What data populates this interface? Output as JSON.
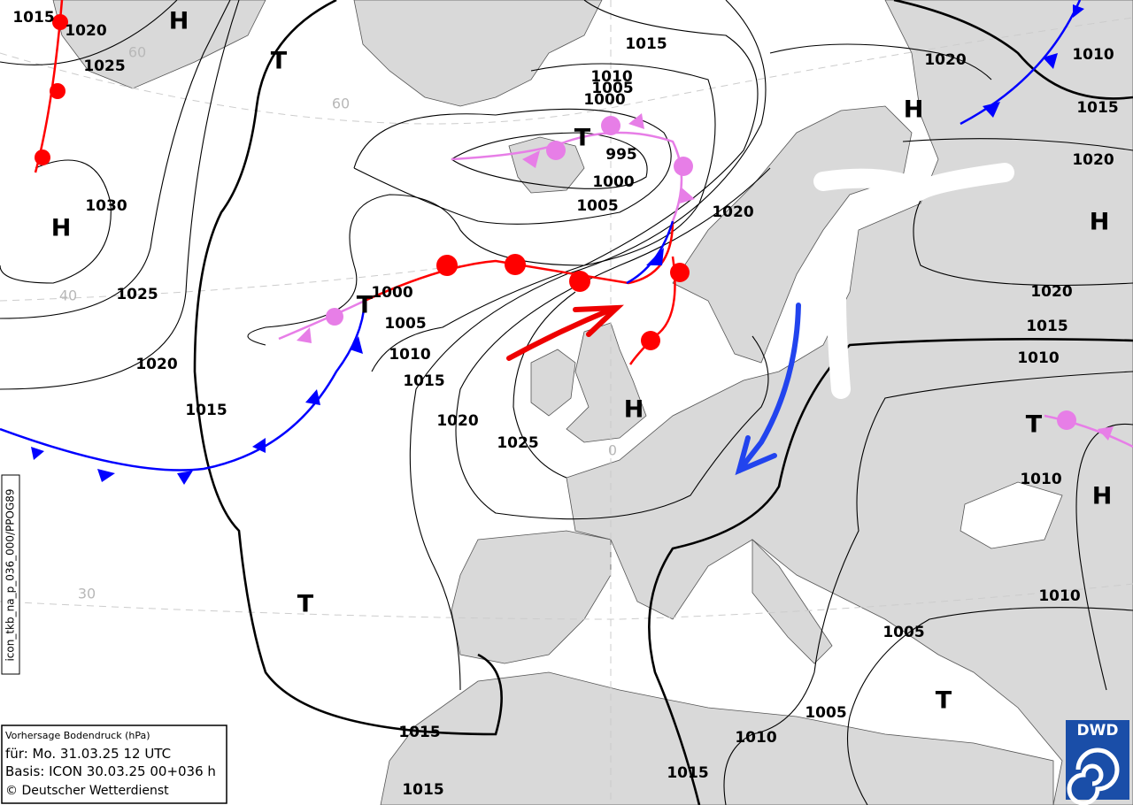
{
  "pressure_labels": [
    1015,
    1020,
    1025,
    1030,
    1025,
    1020,
    1015,
    1000,
    1005,
    1010,
    1015,
    1020,
    1025,
    1015,
    1010,
    1005,
    1000,
    995,
    1000,
    1005,
    1020,
    1020,
    1010,
    1015,
    1020,
    1020,
    1015,
    1010,
    1010,
    1010,
    1005,
    1005,
    1010,
    1015,
    1015,
    1015
  ],
  "system_labels": [
    "H",
    "T",
    "H",
    "T",
    "T",
    "H",
    "H",
    "H",
    "T",
    "H",
    "T",
    "T"
  ],
  "grid_labels": [
    60,
    60,
    40,
    30,
    0
  ],
  "legend": {
    "title": "Vorhersage Bodendruck (hPa)",
    "valid": "für:  Mo. 31.03.25  12 UTC",
    "basis": "Basis: ICON  30.03.25 00+036 h",
    "copyright": "© Deutscher Wetterdienst"
  },
  "product_id": "icon_tkb_na_p_036_000/PPOG89",
  "logo": "DWD"
}
